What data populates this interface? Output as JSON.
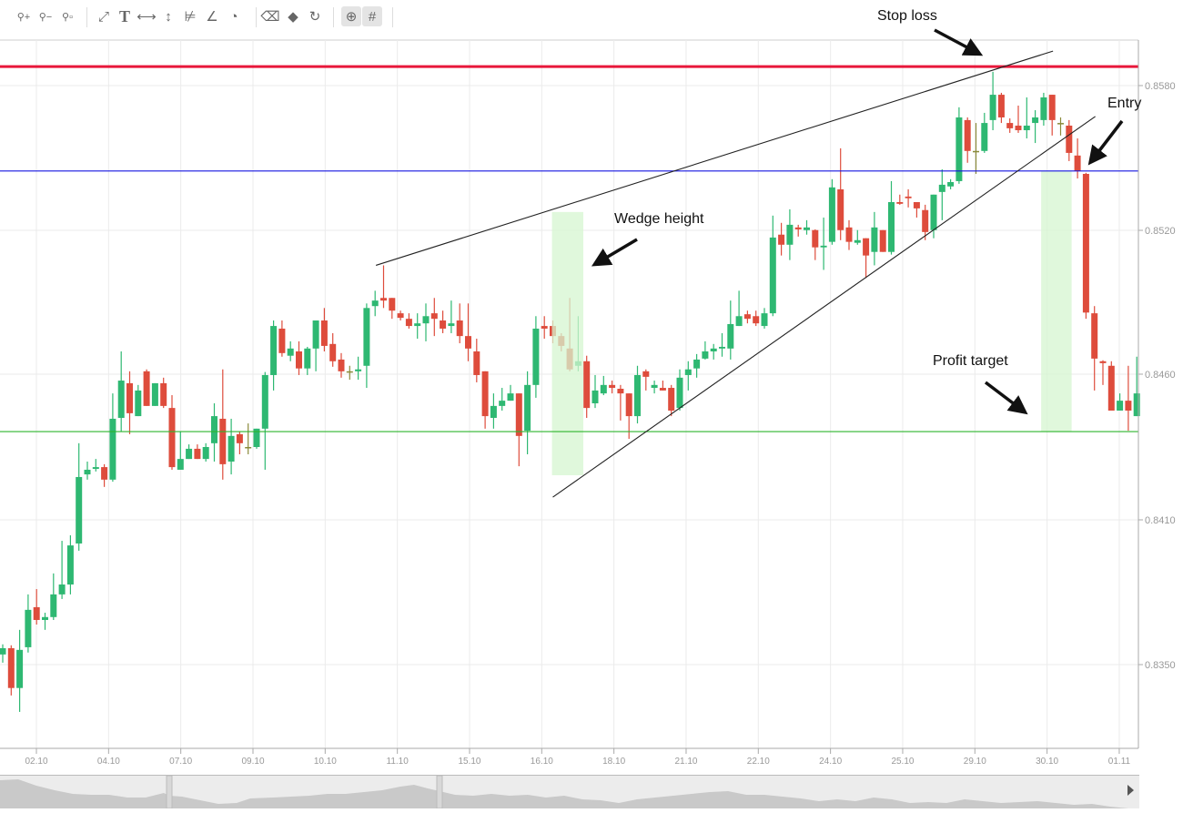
{
  "toolbar": {
    "tools": [
      {
        "icon": "zoom-in-icon",
        "glyph": "⚲+"
      },
      {
        "icon": "zoom-out-icon",
        "glyph": "⚲−"
      },
      {
        "icon": "zoom-reset-icon",
        "glyph": "⚲▫"
      },
      {
        "icon": "trend-line-icon",
        "glyph": "⤢"
      },
      {
        "icon": "text-tool-icon",
        "glyph": "T"
      },
      {
        "icon": "horizontal-line-icon",
        "glyph": "⟷"
      },
      {
        "icon": "vertical-line-icon",
        "glyph": "↕"
      },
      {
        "icon": "fib-retracement-icon",
        "glyph": "⊭"
      },
      {
        "icon": "fib-fan-icon",
        "glyph": "∠"
      },
      {
        "icon": "fib-arc-icon",
        "glyph": "◔"
      },
      {
        "icon": "eraser-icon",
        "glyph": "⌫"
      },
      {
        "icon": "eraser-all-icon",
        "glyph": "◆"
      },
      {
        "icon": "refresh-icon",
        "glyph": "↻"
      },
      {
        "icon": "crosshair-icon",
        "glyph": "⊕",
        "active": true
      },
      {
        "icon": "grid-icon",
        "glyph": "#",
        "active": true
      }
    ]
  },
  "annotations": {
    "stop_loss": "Stop loss",
    "entry": "Entry",
    "wedge_height": "Wedge height",
    "profit_target": "Profit target"
  },
  "chart_data": {
    "type": "candlestick",
    "x_tick_labels": [
      "02.10",
      "04.10",
      "07.10",
      "09.10",
      "10.10",
      "11.10",
      "15.10",
      "16.10",
      "18.10",
      "21.10",
      "22.10",
      "24.10",
      "25.10",
      "29.10",
      "30.10",
      "01.11"
    ],
    "y_ticks": [
      0.858,
      0.852,
      0.846,
      0.841,
      0.835
    ],
    "y_tick_labels": [
      "0.8580",
      "0.8520",
      "0.8460",
      "0.8410",
      "0.8350"
    ],
    "grid": true,
    "colors": {
      "up": "#2eb872",
      "down": "#de4c3c",
      "doji": "#8a8a3a",
      "stop_loss": "#e8173a",
      "entry": "#1515e0",
      "profit_target": "#2db52d",
      "highlight": "#d6f5d0"
    },
    "ohlc_order": [
      "open",
      "high",
      "low",
      "close"
    ],
    "candles": [
      [
        0.83542,
        0.83584,
        0.83508,
        0.83568
      ],
      [
        0.83568,
        0.8358,
        0.83372,
        0.83403
      ],
      [
        0.83403,
        0.83644,
        0.83304,
        0.83561
      ],
      [
        0.83572,
        0.83791,
        0.8355,
        0.83727
      ],
      [
        0.83738,
        0.83813,
        0.83666,
        0.83685
      ],
      [
        0.83685,
        0.83715,
        0.83644,
        0.83697
      ],
      [
        0.83697,
        0.83878,
        0.83685,
        0.83791
      ],
      [
        0.83791,
        0.84013,
        0.83772,
        0.83832
      ],
      [
        0.83832,
        0.84036,
        0.83791,
        0.83994
      ],
      [
        0.84002,
        0.84363,
        0.83972,
        0.84247
      ],
      [
        0.84256,
        0.843,
        0.84238,
        0.84272
      ],
      [
        0.84275,
        0.84309,
        0.84266,
        0.84281
      ],
      [
        0.84281,
        0.84291,
        0.84213,
        0.84238
      ],
      [
        0.84238,
        0.84534,
        0.84231,
        0.84447
      ],
      [
        0.8445,
        0.84695,
        0.84403,
        0.84578
      ],
      [
        0.84569,
        0.84612,
        0.84394,
        0.84466
      ],
      [
        0.84456,
        0.84563,
        0.84456,
        0.84544
      ],
      [
        0.84612,
        0.8462,
        0.84491,
        0.84491
      ],
      [
        0.84491,
        0.84569,
        0.84491,
        0.84569
      ],
      [
        0.84569,
        0.84588,
        0.84484,
        0.84491
      ],
      [
        0.84484,
        0.84528,
        0.84272,
        0.84281
      ],
      [
        0.84272,
        0.84403,
        0.84272,
        0.84309
      ],
      [
        0.84309,
        0.84359,
        0.84309,
        0.84344
      ],
      [
        0.84344,
        0.84359,
        0.84309,
        0.84309
      ],
      [
        0.84309,
        0.84363,
        0.843,
        0.8435
      ],
      [
        0.84363,
        0.845,
        0.843,
        0.84456
      ],
      [
        0.84447,
        0.8462,
        0.84238,
        0.84291
      ],
      [
        0.843,
        0.84447,
        0.84256,
        0.84388
      ],
      [
        0.84394,
        0.84403,
        0.84325,
        0.84363
      ],
      [
        0.8435,
        0.84431,
        0.84325,
        0.8435
      ],
      [
        0.8435,
        0.84413,
        0.84344,
        0.84413
      ],
      [
        0.84413,
        0.84609,
        0.84272,
        0.84597
      ],
      [
        0.84597,
        0.84824,
        0.84544,
        0.84801
      ],
      [
        0.8479,
        0.84824,
        0.84673,
        0.84688
      ],
      [
        0.84677,
        0.84737,
        0.84654,
        0.84707
      ],
      [
        0.84695,
        0.84737,
        0.84597,
        0.84624
      ],
      [
        0.84624,
        0.84714,
        0.84597,
        0.84707
      ],
      [
        0.84707,
        0.84824,
        0.84612,
        0.84824
      ],
      [
        0.84824,
        0.84876,
        0.84695,
        0.84718
      ],
      [
        0.84726,
        0.84771,
        0.84631,
        0.84654
      ],
      [
        0.84661,
        0.84688,
        0.84588,
        0.84612
      ],
      [
        0.84612,
        0.84635,
        0.84581,
        0.84612
      ],
      [
        0.84612,
        0.84673,
        0.84581,
        0.8462
      ],
      [
        0.84635,
        0.84895,
        0.84553,
        0.84876
      ],
      [
        0.84884,
        0.84948,
        0.84842,
        0.84907
      ],
      [
        0.84918,
        0.85054,
        0.84876,
        0.84907
      ],
      [
        0.84918,
        0.84918,
        0.84831,
        0.84865
      ],
      [
        0.84854,
        0.84865,
        0.84824,
        0.84835
      ],
      [
        0.84831,
        0.84854,
        0.8479,
        0.84801
      ],
      [
        0.84801,
        0.84854,
        0.84748,
        0.84812
      ],
      [
        0.84812,
        0.84895,
        0.84737,
        0.84842
      ],
      [
        0.84854,
        0.84918,
        0.84759,
        0.84831
      ],
      [
        0.84824,
        0.84865,
        0.84771,
        0.8479
      ],
      [
        0.84801,
        0.84907,
        0.84771,
        0.84812
      ],
      [
        0.84824,
        0.84895,
        0.84729,
        0.84759
      ],
      [
        0.84759,
        0.84895,
        0.84654,
        0.84707
      ],
      [
        0.84695,
        0.84748,
        0.84572,
        0.84597
      ],
      [
        0.84612,
        0.84612,
        0.84413,
        0.84456
      ],
      [
        0.8445,
        0.84534,
        0.84413,
        0.84491
      ],
      [
        0.84491,
        0.84553,
        0.84475,
        0.84509
      ],
      [
        0.84509,
        0.84563,
        0.84509,
        0.84534
      ],
      [
        0.84534,
        0.84534,
        0.84284,
        0.84388
      ],
      [
        0.84406,
        0.84612,
        0.84325,
        0.84563
      ],
      [
        0.84563,
        0.84842,
        0.84519,
        0.8479
      ],
      [
        0.84801,
        0.84842,
        0.84748,
        0.8479
      ],
      [
        0.84801,
        0.84824,
        0.84729,
        0.84759
      ],
      [
        0.84759,
        0.84771,
        0.84695,
        0.84718
      ],
      [
        0.84707,
        0.84918,
        0.84612,
        0.8462
      ],
      [
        0.84635,
        0.84842,
        0.84612,
        0.84654
      ],
      [
        0.84654,
        0.84677,
        0.8445,
        0.84484
      ],
      [
        0.845,
        0.84597,
        0.84484,
        0.84544
      ],
      [
        0.84534,
        0.84594,
        0.84528,
        0.84563
      ],
      [
        0.84563,
        0.84578,
        0.84534,
        0.84553
      ],
      [
        0.8455,
        0.84563,
        0.84441,
        0.84534
      ],
      [
        0.84534,
        0.84534,
        0.84378,
        0.84456
      ],
      [
        0.84456,
        0.84635,
        0.84431,
        0.84597
      ],
      [
        0.84612,
        0.8462,
        0.84544,
        0.84591
      ],
      [
        0.84553,
        0.84578,
        0.84534,
        0.84563
      ],
      [
        0.84553,
        0.84578,
        0.84544,
        0.84544
      ],
      [
        0.84553,
        0.84563,
        0.84456,
        0.84475
      ],
      [
        0.84484,
        0.8462,
        0.84475,
        0.84588
      ],
      [
        0.84597,
        0.84654,
        0.84544,
        0.8462
      ],
      [
        0.84624,
        0.84684,
        0.84588,
        0.84661
      ],
      [
        0.84665,
        0.84737,
        0.84661,
        0.84695
      ],
      [
        0.84695,
        0.84726,
        0.84661,
        0.84707
      ],
      [
        0.84707,
        0.84771,
        0.84673,
        0.84714
      ],
      [
        0.84707,
        0.84907,
        0.84661,
        0.84809
      ],
      [
        0.84801,
        0.84948,
        0.84801,
        0.84842
      ],
      [
        0.8485,
        0.84865,
        0.84812,
        0.84831
      ],
      [
        0.84842,
        0.84865,
        0.84801,
        0.84812
      ],
      [
        0.84801,
        0.84876,
        0.8479,
        0.84854
      ],
      [
        0.84854,
        0.85261,
        0.84842,
        0.8517
      ],
      [
        0.85182,
        0.85231,
        0.85095,
        0.8514
      ],
      [
        0.8514,
        0.85287,
        0.85076,
        0.85223
      ],
      [
        0.85212,
        0.85223,
        0.85174,
        0.85204
      ],
      [
        0.85201,
        0.85242,
        0.85182,
        0.85212
      ],
      [
        0.85201,
        0.85204,
        0.85076,
        0.85129
      ],
      [
        0.85129,
        0.85253,
        0.85035,
        0.85136
      ],
      [
        0.85152,
        0.85412,
        0.8514,
        0.85378
      ],
      [
        0.8537,
        0.8554,
        0.85159,
        0.85201
      ],
      [
        0.85212,
        0.85242,
        0.85118,
        0.85152
      ],
      [
        0.85148,
        0.85201,
        0.8514,
        0.85159
      ],
      [
        0.85167,
        0.85167,
        0.85001,
        0.85095
      ],
      [
        0.8511,
        0.85276,
        0.85054,
        0.85212
      ],
      [
        0.85201,
        0.85201,
        0.8511,
        0.8511
      ],
      [
        0.8511,
        0.85404,
        0.85099,
        0.85317
      ],
      [
        0.85317,
        0.85348,
        0.85306,
        0.8531
      ],
      [
        0.8534,
        0.8537,
        0.85295,
        0.85333
      ],
      [
        0.85317,
        0.85317,
        0.85253,
        0.85291
      ],
      [
        0.85284,
        0.85306,
        0.85159,
        0.85193
      ],
      [
        0.85201,
        0.85348,
        0.85167,
        0.85348
      ],
      [
        0.85359,
        0.85453,
        0.85242,
        0.85389
      ],
      [
        0.85382,
        0.85412,
        0.8537,
        0.854
      ],
      [
        0.85404,
        0.8571,
        0.85393,
        0.85668
      ],
      [
        0.85657,
        0.85668,
        0.8548,
        0.85529
      ],
      [
        0.85529,
        0.85645,
        0.85434,
        0.85529
      ],
      [
        0.85529,
        0.85687,
        0.85521,
        0.85645
      ],
      [
        0.85657,
        0.85857,
        0.85615,
        0.85762
      ],
      [
        0.85762,
        0.8577,
        0.85645,
        0.85668
      ],
      [
        0.85645,
        0.85664,
        0.85604,
        0.85623
      ],
      [
        0.85634,
        0.85717,
        0.85604,
        0.85615
      ],
      [
        0.85615,
        0.85751,
        0.85581,
        0.85634
      ],
      [
        0.85645,
        0.85698,
        0.85562,
        0.85668
      ],
      [
        0.85657,
        0.8577,
        0.85634,
        0.85751
      ],
      [
        0.85762,
        0.85762,
        0.85593,
        0.85657
      ],
      [
        0.85645,
        0.85668,
        0.85593,
        0.85645
      ],
      [
        0.85634,
        0.85657,
        0.85487,
        0.85521
      ],
      [
        0.8551,
        0.85581,
        0.85415,
        0.85446
      ],
      [
        0.85434,
        0.85438,
        0.84831,
        0.84857
      ],
      [
        0.84854,
        0.84884,
        0.84544,
        0.84665
      ],
      [
        0.84654,
        0.84658,
        0.84563,
        0.84646
      ],
      [
        0.84635,
        0.84654,
        0.84475,
        0.84475
      ],
      [
        0.84475,
        0.84534,
        0.84475,
        0.84509
      ],
      [
        0.84509,
        0.84635,
        0.84406,
        0.84475
      ],
      [
        0.84456,
        0.84673,
        0.84456,
        0.84534
      ]
    ],
    "horizontal_lines": [
      {
        "label": "Stop loss",
        "price": 0.85879,
        "color": "#e8173a"
      },
      {
        "label": "Entry",
        "price": 0.85446,
        "color": "#1515e0"
      },
      {
        "label": "Profit target",
        "price": 0.84403,
        "color": "#2db52d"
      }
    ],
    "trend_lines": [
      {
        "role": "wedge-upper",
        "from": [
          44.1,
          0.85054
        ],
        "to": [
          124.1,
          0.85943
        ]
      },
      {
        "role": "wedge-lower",
        "from": [
          65.0,
          0.84178
        ],
        "to": [
          129.1,
          0.85672
        ]
      }
    ],
    "highlight_zones": [
      {
        "label": "Wedge height",
        "x_range": [
          64.9,
          68.6
        ],
        "price_range": [
          0.84253,
          0.85276
        ]
      },
      {
        "label": "Profit target",
        "x_range": [
          122.7,
          126.3
        ],
        "price_range": [
          0.84403,
          0.85446
        ]
      }
    ]
  }
}
